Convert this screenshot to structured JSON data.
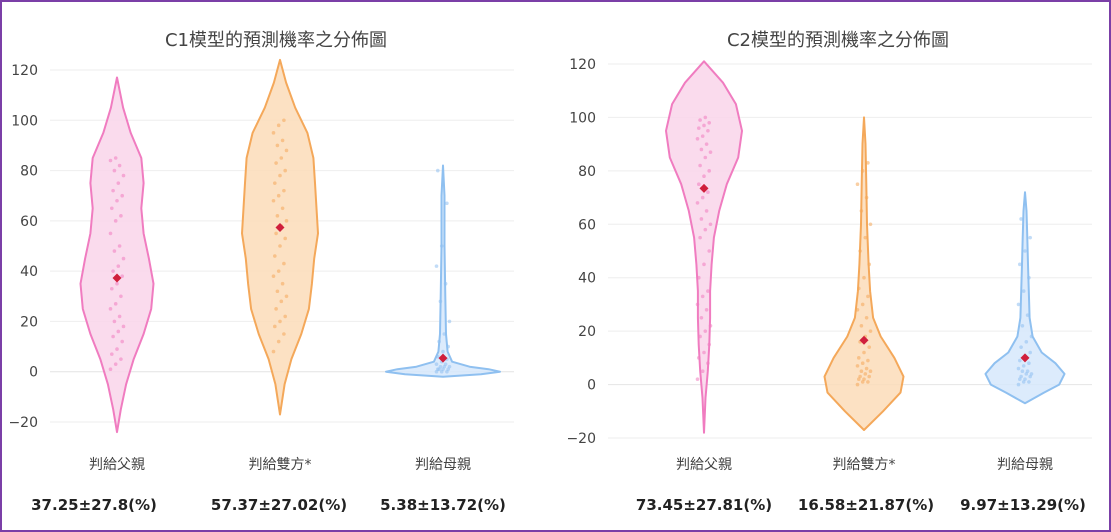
{
  "chart_data": [
    {
      "type": "violin",
      "title": "C1模型的預測機率之分佈圖",
      "categories": [
        "判給父親",
        "判給雙方*",
        "判給母親"
      ],
      "ylim": [
        -25,
        125
      ],
      "yticks": [
        -20,
        0,
        20,
        40,
        60,
        80,
        100,
        120
      ],
      "grid": true,
      "series": [
        {
          "category": "判給父親",
          "color": "#f07cc0",
          "fill": "#f9d5ea",
          "mean": 37.25,
          "sd": 27.8,
          "range": [
            -24,
            117
          ],
          "density": [
            [
              -24,
              0.0
            ],
            [
              -15,
              0.05
            ],
            [
              -5,
              0.12
            ],
            [
              5,
              0.22
            ],
            [
              15,
              0.35
            ],
            [
              25,
              0.45
            ],
            [
              35,
              0.48
            ],
            [
              45,
              0.42
            ],
            [
              55,
              0.35
            ],
            [
              65,
              0.32
            ],
            [
              75,
              0.35
            ],
            [
              85,
              0.32
            ],
            [
              95,
              0.18
            ],
            [
              105,
              0.08
            ],
            [
              117,
              0.0
            ]
          ],
          "points": [
            1,
            3,
            5,
            7,
            9,
            12,
            14,
            16,
            18,
            20,
            22,
            25,
            27,
            30,
            33,
            35,
            38,
            40,
            42,
            45,
            48,
            50,
            55,
            60,
            62,
            65,
            68,
            70,
            72,
            75,
            78,
            80,
            82,
            84,
            85
          ]
        },
        {
          "category": "判給雙方*",
          "color": "#f4a85a",
          "fill": "#fbdcb8",
          "mean": 57.37,
          "sd": 27.02,
          "range": [
            -17,
            124
          ],
          "density": [
            [
              -17,
              0.0
            ],
            [
              -5,
              0.06
            ],
            [
              5,
              0.15
            ],
            [
              15,
              0.28
            ],
            [
              25,
              0.38
            ],
            [
              35,
              0.42
            ],
            [
              45,
              0.45
            ],
            [
              55,
              0.5
            ],
            [
              65,
              0.48
            ],
            [
              75,
              0.46
            ],
            [
              85,
              0.44
            ],
            [
              95,
              0.36
            ],
            [
              105,
              0.2
            ],
            [
              115,
              0.08
            ],
            [
              124,
              0.0
            ]
          ],
          "points": [
            8,
            12,
            15,
            18,
            20,
            22,
            25,
            28,
            30,
            32,
            35,
            38,
            40,
            43,
            46,
            50,
            53,
            55,
            58,
            60,
            62,
            65,
            68,
            70,
            72,
            75,
            78,
            80,
            83,
            85,
            88,
            90,
            92,
            95,
            98,
            100
          ]
        },
        {
          "category": "判給母親",
          "color": "#8fc0f0",
          "fill": "#d6e8fb",
          "mean": 5.38,
          "sd": 13.72,
          "range": [
            -2,
            82
          ],
          "density": [
            [
              -2,
              0.0
            ],
            [
              -1,
              0.5
            ],
            [
              0,
              0.75
            ],
            [
              1,
              0.6
            ],
            [
              2,
              0.35
            ],
            [
              4,
              0.12
            ],
            [
              8,
              0.06
            ],
            [
              15,
              0.04
            ],
            [
              30,
              0.03
            ],
            [
              50,
              0.02
            ],
            [
              70,
              0.02
            ],
            [
              82,
              0.0
            ]
          ],
          "points": [
            0,
            0,
            0,
            1,
            1,
            1,
            1,
            2,
            2,
            2,
            3,
            3,
            4,
            5,
            6,
            8,
            10,
            12,
            15,
            20,
            28,
            35,
            42,
            50,
            67,
            80
          ]
        }
      ],
      "summary_labels": [
        "37.25±27.8(%)",
        "57.37±27.02(%)",
        "5.38±13.72(%)"
      ]
    },
    {
      "type": "violin",
      "title": "C2模型的預測機率之分佈圖",
      "categories": [
        "判給父親",
        "判給雙方*",
        "判給母親"
      ],
      "ylim": [
        -25,
        125
      ],
      "yticks": [
        -20,
        0,
        20,
        40,
        60,
        80,
        100,
        120
      ],
      "grid": true,
      "series": [
        {
          "category": "判給父親",
          "color": "#f07cc0",
          "fill": "#f9d5ea",
          "mean": 73.45,
          "sd": 27.81,
          "range": [
            -18,
            121
          ],
          "density": [
            [
              -18,
              0.0
            ],
            [
              -5,
              0.02
            ],
            [
              5,
              0.05
            ],
            [
              15,
              0.07
            ],
            [
              25,
              0.08
            ],
            [
              35,
              0.08
            ],
            [
              45,
              0.1
            ],
            [
              55,
              0.13
            ],
            [
              65,
              0.2
            ],
            [
              75,
              0.3
            ],
            [
              85,
              0.45
            ],
            [
              95,
              0.5
            ],
            [
              105,
              0.42
            ],
            [
              113,
              0.25
            ],
            [
              121,
              0.0
            ]
          ],
          "points": [
            2,
            5,
            8,
            10,
            12,
            15,
            18,
            20,
            22,
            25,
            28,
            30,
            33,
            35,
            40,
            45,
            50,
            55,
            58,
            60,
            62,
            65,
            68,
            70,
            72,
            75,
            78,
            80,
            82,
            85,
            87,
            88,
            90,
            92,
            93,
            95,
            96,
            97,
            98,
            99,
            100
          ]
        },
        {
          "category": "判給雙方*",
          "color": "#f4a85a",
          "fill": "#fbdcb8",
          "mean": 16.58,
          "sd": 21.87,
          "range": [
            -17,
            100
          ],
          "density": [
            [
              -17,
              0.0
            ],
            [
              -10,
              0.25
            ],
            [
              -3,
              0.48
            ],
            [
              3,
              0.52
            ],
            [
              10,
              0.4
            ],
            [
              18,
              0.22
            ],
            [
              25,
              0.12
            ],
            [
              35,
              0.08
            ],
            [
              45,
              0.06
            ],
            [
              60,
              0.04
            ],
            [
              75,
              0.03
            ],
            [
              90,
              0.02
            ],
            [
              100,
              0.0
            ]
          ],
          "points": [
            0,
            1,
            1,
            2,
            2,
            3,
            3,
            4,
            5,
            5,
            6,
            7,
            8,
            9,
            10,
            12,
            14,
            16,
            18,
            20,
            22,
            25,
            28,
            30,
            33,
            36,
            40,
            45,
            50,
            55,
            60,
            65,
            70,
            75,
            80,
            83
          ]
        },
        {
          "category": "判給母親",
          "color": "#8fc0f0",
          "fill": "#d6e8fb",
          "mean": 9.97,
          "sd": 13.29,
          "range": [
            -7,
            72
          ],
          "density": [
            [
              -7,
              0.0
            ],
            [
              -3,
              0.25
            ],
            [
              0,
              0.45
            ],
            [
              4,
              0.52
            ],
            [
              8,
              0.4
            ],
            [
              12,
              0.22
            ],
            [
              18,
              0.1
            ],
            [
              25,
              0.06
            ],
            [
              35,
              0.05
            ],
            [
              45,
              0.04
            ],
            [
              55,
              0.03
            ],
            [
              65,
              0.02
            ],
            [
              72,
              0.0
            ]
          ],
          "points": [
            0,
            1,
            1,
            2,
            2,
            3,
            3,
            4,
            4,
            5,
            5,
            6,
            7,
            8,
            9,
            10,
            12,
            14,
            16,
            18,
            22,
            26,
            30,
            35,
            40,
            45,
            50,
            55,
            62
          ]
        }
      ],
      "summary_labels": [
        "73.45±27.81(%)",
        "16.58±21.87(%)",
        "9.97±13.29(%)"
      ]
    }
  ]
}
